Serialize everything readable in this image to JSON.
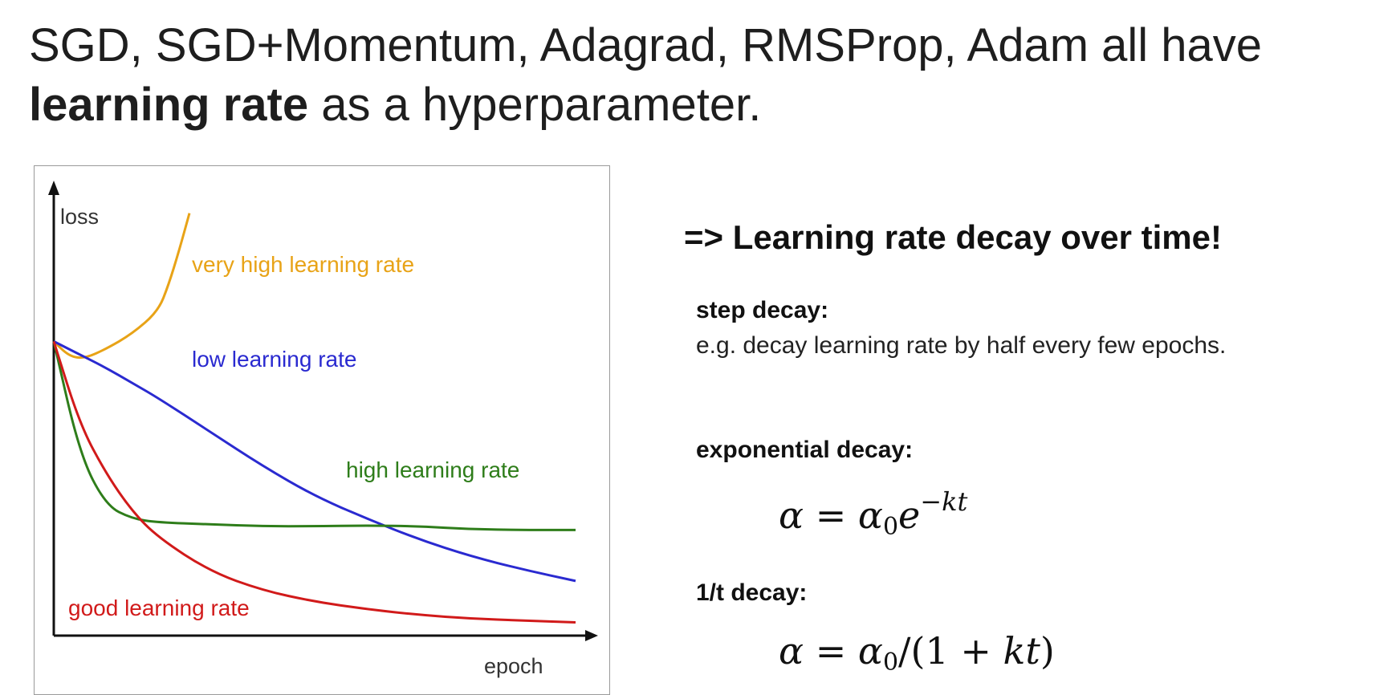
{
  "slide": {
    "title_line1": "SGD, SGD+Momentum, Adagrad, RMSProp, Adam all have",
    "title_bold": "learning rate",
    "title_rest": " as a hyperparameter."
  },
  "decay": {
    "heading": "=> Learning rate decay over time!",
    "step_title": "step decay:",
    "step_text": "e.g. decay learning rate by half every few epochs.",
    "exp_title": "exponential decay:",
    "inv_title": "1/t decay:"
  },
  "chart_data": {
    "type": "line",
    "xlabel": "epoch",
    "ylabel": "loss",
    "grid": false,
    "x": [
      0,
      0.05,
      0.1,
      0.15,
      0.2,
      0.3,
      0.4,
      0.5,
      0.6,
      0.7,
      0.8,
      0.9,
      1.0
    ],
    "series": [
      {
        "name": "very high learning rate",
        "color": "#e8a317",
        "x": [
          0,
          0.03,
          0.06,
          0.1,
          0.15,
          0.2,
          0.22,
          0.24,
          0.26
        ],
        "values": [
          0.78,
          0.74,
          0.735,
          0.76,
          0.8,
          0.86,
          0.93,
          1.02,
          1.12
        ]
      },
      {
        "name": "low learning rate",
        "color": "#2a2ad0",
        "values": [
          0.78,
          0.745,
          0.71,
          0.67,
          0.63,
          0.54,
          0.45,
          0.37,
          0.31,
          0.255,
          0.21,
          0.175,
          0.145
        ]
      },
      {
        "name": "high learning rate",
        "color": "#2e7d1a",
        "values": [
          0.78,
          0.48,
          0.345,
          0.31,
          0.3,
          0.295,
          0.29,
          0.29,
          0.292,
          0.29,
          0.282,
          0.28,
          0.28
        ]
      },
      {
        "name": "good learning rate",
        "color": "#d11a1a",
        "values": [
          0.78,
          0.56,
          0.43,
          0.33,
          0.26,
          0.17,
          0.12,
          0.09,
          0.07,
          0.055,
          0.045,
          0.04,
          0.035
        ]
      }
    ]
  }
}
